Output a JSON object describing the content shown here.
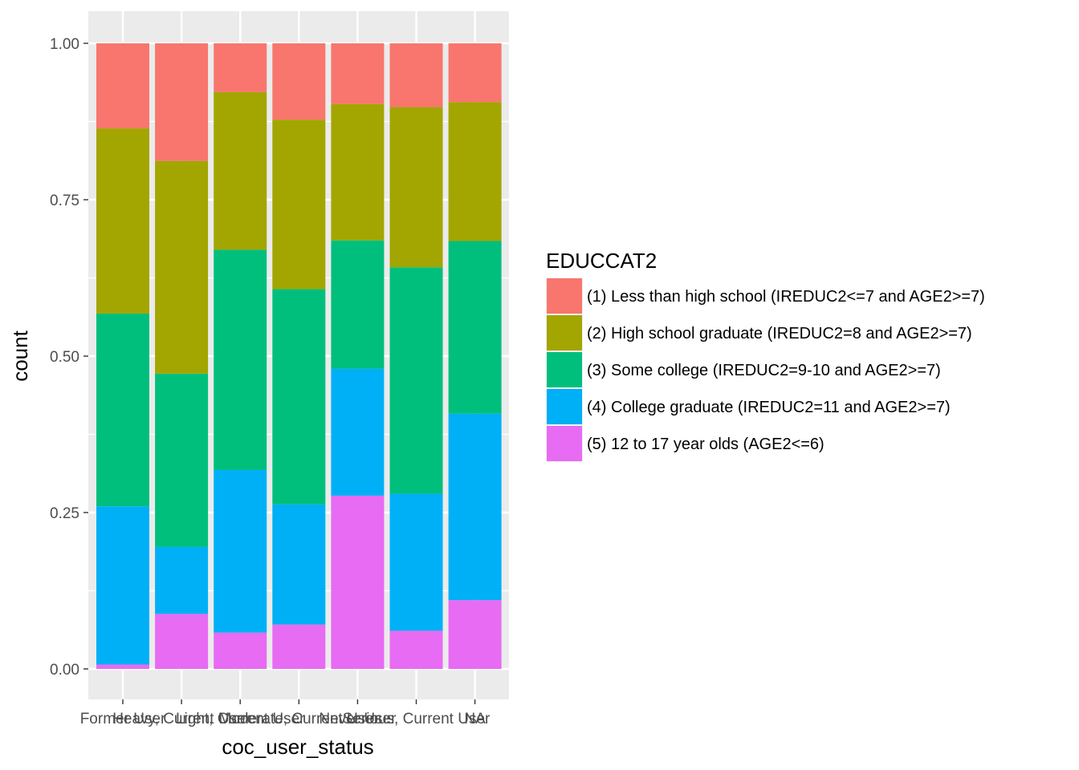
{
  "chart_data": {
    "type": "bar",
    "stacked": true,
    "position": "fill",
    "xlabel": "coc_user_status",
    "ylabel": "count",
    "ylim": [
      0,
      1
    ],
    "yticks": [
      "0.00",
      "0.25",
      "0.50",
      "0.75",
      "1.00"
    ],
    "categories": [
      "Former User",
      "Heavy, Current User",
      "Light, Current User",
      "Moderate, Current User",
      "Never User",
      "Serious, Current User",
      "NA"
    ],
    "series": [
      {
        "name": "(5) 12 to 17 year olds (AGE2<=6)",
        "color": "#E76BF3",
        "values": [
          0.007,
          0.088,
          0.058,
          0.071,
          0.277,
          0.061,
          0.11
        ]
      },
      {
        "name": "(4) College graduate (IREDUC2=11 and AGE2>=7)",
        "color": "#00B0F6",
        "values": [
          0.253,
          0.107,
          0.26,
          0.192,
          0.203,
          0.219,
          0.298
        ]
      },
      {
        "name": "(3) Some college (IREDUC2=9-10 and AGE2>=7)",
        "color": "#00BF7D",
        "values": [
          0.308,
          0.277,
          0.352,
          0.344,
          0.205,
          0.362,
          0.276
        ]
      },
      {
        "name": "(2) High school graduate (IREDUC2=8 and AGE2>=7)",
        "color": "#A3A500",
        "values": [
          0.296,
          0.34,
          0.252,
          0.271,
          0.218,
          0.256,
          0.222
        ]
      },
      {
        "name": "(1) Less than high school (IREDUC2<=7 and AGE2>=7)",
        "color": "#F8766D",
        "values": [
          0.136,
          0.188,
          0.078,
          0.122,
          0.097,
          0.102,
          0.094
        ]
      }
    ],
    "legend": {
      "title": "EDUCCAT2",
      "placement": "right",
      "items": [
        {
          "label": "(1) Less than high school (IREDUC2<=7 and AGE2>=7)",
          "color": "#F8766D"
        },
        {
          "label": "(2) High school graduate (IREDUC2=8 and AGE2>=7)",
          "color": "#A3A500"
        },
        {
          "label": "(3) Some college (IREDUC2=9-10 and AGE2>=7)",
          "color": "#00BF7D"
        },
        {
          "label": "(4) College graduate (IREDUC2=11 and AGE2>=7)",
          "color": "#00B0F6"
        },
        {
          "label": "(5) 12 to 17 year olds (AGE2<=6)",
          "color": "#E76BF3"
        }
      ]
    },
    "grid": true,
    "panel_color": "#EBEBEB"
  }
}
